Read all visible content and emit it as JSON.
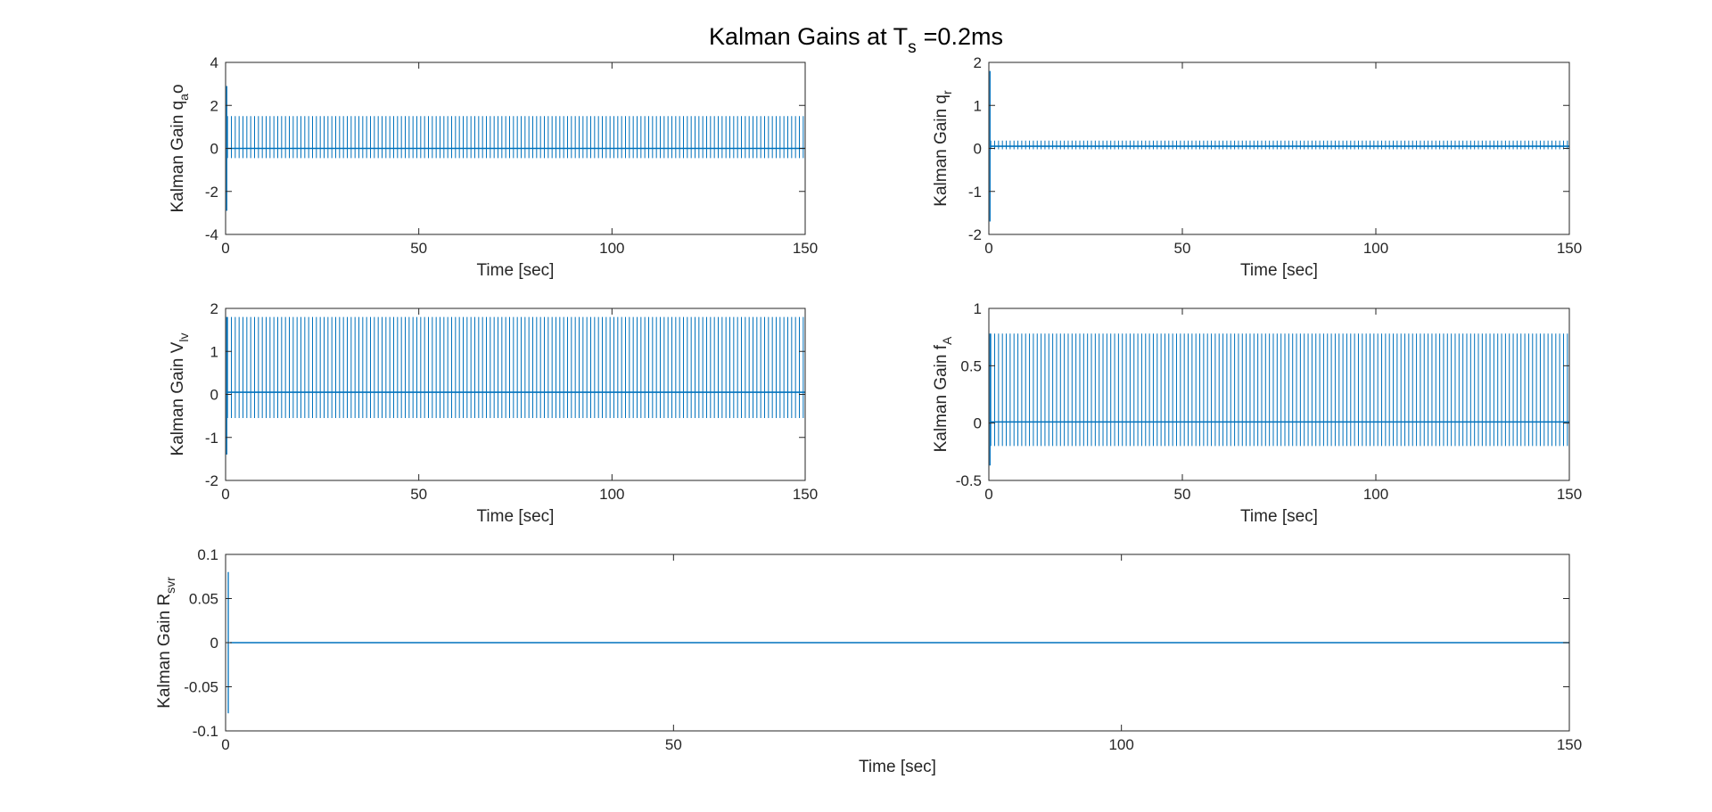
{
  "figure": {
    "title": "Kalman Gains at T",
    "title_sub": "s",
    "title_suffix": "=0.2ms"
  },
  "colors": {
    "line": "#0072BD",
    "axes": "#262626",
    "background": "#ffffff"
  },
  "chart_data": [
    {
      "type": "line",
      "ylabel": "Kalman Gain q",
      "ylabel_sub": "a",
      "ylabel_suffix": "o",
      "xlabel": "Time [sec]",
      "xlim": [
        0,
        150
      ],
      "ylim": [
        -4,
        4
      ],
      "xticks": [
        0,
        50,
        100,
        150
      ],
      "yticks": [
        -4,
        -2,
        0,
        2,
        4
      ],
      "ytick_labels": [
        "-4",
        "-2",
        "0",
        "2",
        "4"
      ],
      "grid": false,
      "series": [
        {
          "values": {
            "initial_transient": {
              "t_end": 0.5,
              "max": 2.9,
              "min": -2.9
            },
            "oscillation": {
              "upper": 1.5,
              "lower": -0.45,
              "baseline": 0.0,
              "cycles": 150
            }
          }
        }
      ]
    },
    {
      "type": "line",
      "ylabel": "Kalman Gain q",
      "ylabel_sub": "r",
      "ylabel_suffix": "",
      "xlabel": "Time [sec]",
      "xlim": [
        0,
        150
      ],
      "ylim": [
        -2,
        2
      ],
      "xticks": [
        0,
        50,
        100,
        150
      ],
      "yticks": [
        -2,
        -1,
        0,
        1,
        2
      ],
      "ytick_labels": [
        "-2",
        "-1",
        "0",
        "1",
        "2"
      ],
      "grid": false,
      "series": [
        {
          "values": {
            "initial_transient": {
              "t_end": 0.5,
              "max": 1.8,
              "min": -1.7
            },
            "oscillation": {
              "upper": 0.18,
              "lower": -0.02,
              "baseline": 0.05,
              "cycles": 150
            }
          }
        }
      ]
    },
    {
      "type": "line",
      "ylabel": "Kalman Gain V",
      "ylabel_sub": "lv",
      "ylabel_suffix": "",
      "xlabel": "Time [sec]",
      "xlim": [
        0,
        150
      ],
      "ylim": [
        -2,
        2
      ],
      "xticks": [
        0,
        50,
        100,
        150
      ],
      "yticks": [
        -2,
        -1,
        0,
        1,
        2
      ],
      "ytick_labels": [
        "-2",
        "-1",
        "0",
        "1",
        "2"
      ],
      "grid": false,
      "series": [
        {
          "values": {
            "initial_transient": {
              "t_end": 0.5,
              "max": 1.8,
              "min": -1.4
            },
            "oscillation": {
              "upper": 1.8,
              "lower": -0.55,
              "baseline": 0.05,
              "cycles": 150
            }
          }
        }
      ]
    },
    {
      "type": "line",
      "ylabel": "Kalman Gain f",
      "ylabel_sub": "A",
      "ylabel_suffix": "",
      "xlabel": "Time [sec]",
      "xlim": [
        0,
        150
      ],
      "ylim": [
        -0.5,
        1
      ],
      "xticks": [
        0,
        50,
        100,
        150
      ],
      "yticks": [
        -0.5,
        0,
        0.5,
        1
      ],
      "ytick_labels": [
        "-0.5",
        "0",
        "0.5",
        "1"
      ],
      "grid": false,
      "series": [
        {
          "values": {
            "initial_transient": {
              "t_end": 0.5,
              "max": 0.78,
              "min": -0.37
            },
            "oscillation": {
              "upper": 0.78,
              "lower": -0.2,
              "baseline": 0.01,
              "cycles": 150
            }
          }
        }
      ]
    },
    {
      "type": "line",
      "ylabel": "Kalman Gain R",
      "ylabel_sub": "svr",
      "ylabel_suffix": "",
      "xlabel": "Time [sec]",
      "xlim": [
        0,
        150
      ],
      "ylim": [
        -0.1,
        0.1
      ],
      "xticks": [
        0,
        50,
        100,
        150
      ],
      "yticks": [
        -0.1,
        -0.05,
        0,
        0.05,
        0.1
      ],
      "ytick_labels": [
        "-0.1",
        "-0.05",
        "0",
        "0.05",
        "0.1"
      ],
      "grid": false,
      "series": [
        {
          "values": {
            "initial_transient": {
              "t_end": 0.5,
              "max": 0.08,
              "min": -0.08
            },
            "oscillation": {
              "upper": 0.0,
              "lower": 0.0,
              "baseline": 0.0,
              "cycles": 0
            }
          }
        }
      ]
    }
  ]
}
